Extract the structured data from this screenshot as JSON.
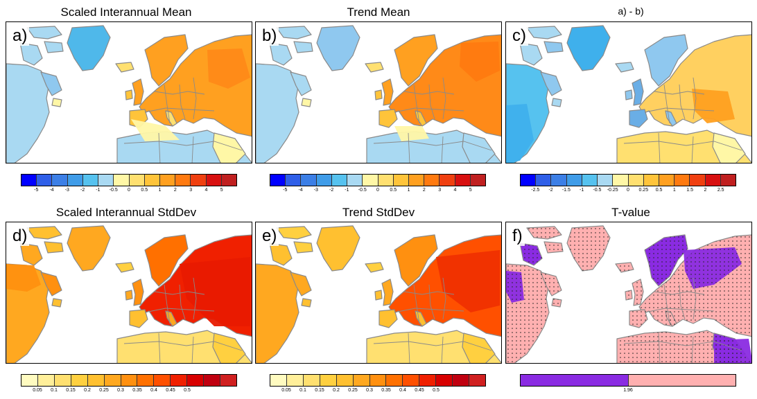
{
  "panels": [
    {
      "id": "a",
      "label": "a)",
      "title": "Scaled Interannual Mean",
      "field": "mean_a"
    },
    {
      "id": "b",
      "label": "b)",
      "title": "Trend Mean",
      "field": "mean_b"
    },
    {
      "id": "c",
      "label": "c)",
      "title": "a) - b)",
      "field": "diff"
    },
    {
      "id": "d",
      "label": "d)",
      "title": "Scaled Interannual StdDev",
      "field": "std_d"
    },
    {
      "id": "e",
      "label": "e)",
      "title": "Trend StdDev",
      "field": "std_e"
    },
    {
      "id": "f",
      "label": "f)",
      "title": "T-value",
      "field": "tval"
    }
  ],
  "colorbars": {
    "mean": {
      "colors": [
        "#0000ff",
        "#2f5fe8",
        "#3c7fe6",
        "#3f9ce8",
        "#56c2ef",
        "#a9d9f2",
        "#fff7a6",
        "#ffe070",
        "#ffc43a",
        "#ffa020",
        "#ff7a10",
        "#f04010",
        "#d81010",
        "#c02020"
      ],
      "ticks": [
        "-5",
        "-4",
        "-3",
        "-2",
        "-1",
        "-0.5",
        "0",
        "0.5",
        "1",
        "2",
        "3",
        "4",
        "5"
      ]
    },
    "diff": {
      "colors": [
        "#0000ff",
        "#2f5fe8",
        "#3c7fe6",
        "#3f9ce8",
        "#56c2ef",
        "#a9d9f2",
        "#fff7a6",
        "#ffe070",
        "#ffc43a",
        "#ffa020",
        "#ff7a10",
        "#f04010",
        "#d81010",
        "#c02020"
      ],
      "ticks": [
        "-2.5",
        "-2",
        "-1.5",
        "-1",
        "-0.5",
        "-0.25",
        "0",
        "0.25",
        "0.5",
        "1",
        "1.5",
        "2",
        "2.5"
      ]
    },
    "std": {
      "colors": [
        "#fffbc0",
        "#ffef9a",
        "#ffe070",
        "#ffd040",
        "#ffc030",
        "#ffa820",
        "#ff9010",
        "#ff7000",
        "#ff5000",
        "#f02000",
        "#d80000",
        "#c00010",
        "#d02020"
      ],
      "ticks": [
        "0.05",
        "0.1",
        "0.15",
        "0.2",
        "0.25",
        "0.3",
        "0.35",
        "0.4",
        "0.45",
        "0.5"
      ]
    },
    "tval": {
      "colors": [
        "#8a2be2",
        "#ffb0b0"
      ],
      "ticks": [
        "1.96"
      ]
    }
  }
}
